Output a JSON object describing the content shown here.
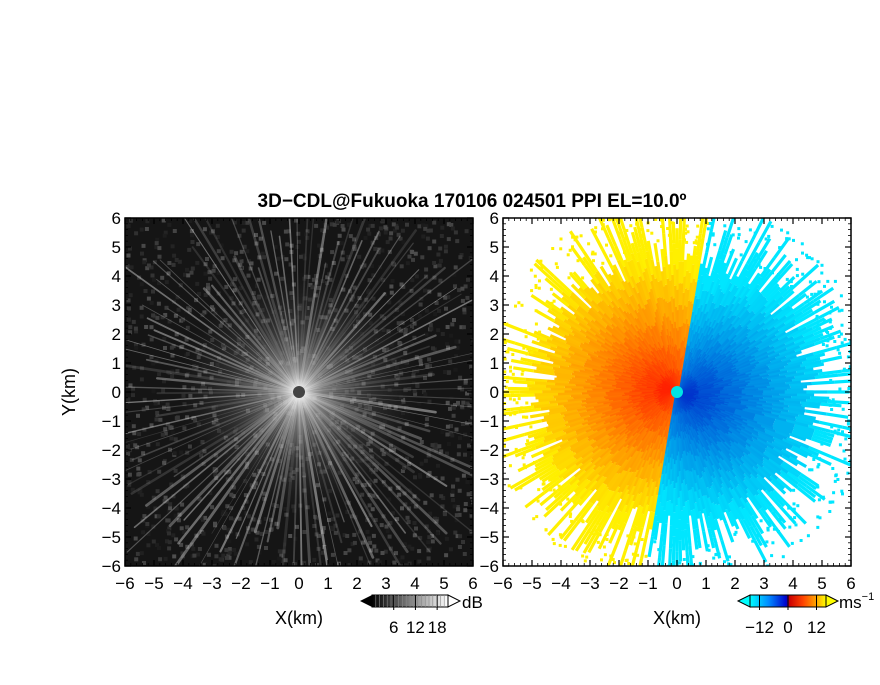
{
  "figure": {
    "title": "3D−CDL@Fukuoka 170106 024501 PPI EL=10.0º"
  },
  "chart_data": [
    {
      "type": "heatmap",
      "name": "reflectivity-ppi",
      "title": "",
      "xlabel": "X(km)",
      "ylabel": "Y(km)",
      "xlim": [
        -6,
        6
      ],
      "ylim": [
        -6,
        6
      ],
      "xticks": [
        -6,
        -5,
        -4,
        -3,
        -2,
        -1,
        0,
        1,
        2,
        3,
        4,
        5,
        6
      ],
      "yticks": [
        -6,
        -5,
        -4,
        -3,
        -2,
        -1,
        0,
        1,
        2,
        3,
        4,
        5,
        6
      ],
      "xtick_labels": [
        "−6",
        "−5",
        "−4",
        "−3",
        "−2",
        "−1",
        "0",
        "1",
        "2",
        "3",
        "4",
        "5",
        "6"
      ],
      "ytick_labels": [
        "−6",
        "−5",
        "−4",
        "−3",
        "−2",
        "−1",
        "0",
        "1",
        "2",
        "3",
        "4",
        "5",
        "6"
      ],
      "grid": false,
      "colorbar": {
        "unit": "dB",
        "tick_values": [
          6,
          12,
          18
        ],
        "tick_labels": [
          "6",
          "12",
          "18"
        ],
        "range": [
          0,
          21
        ],
        "colors": [
          "#000000",
          "#ffffff"
        ]
      }
    },
    {
      "type": "heatmap",
      "name": "radial-velocity-ppi",
      "title": "",
      "xlabel": "X(km)",
      "ylabel": "",
      "xlim": [
        -6,
        6
      ],
      "ylim": [
        -6,
        6
      ],
      "xticks": [
        -6,
        -5,
        -4,
        -3,
        -2,
        -1,
        0,
        1,
        2,
        3,
        4,
        5,
        6
      ],
      "xtick_labels": [
        "−6",
        "−5",
        "−4",
        "−3",
        "−2",
        "−1",
        "0",
        "1",
        "2",
        "3",
        "4",
        "5",
        "6"
      ],
      "ytick_labels": [
        "−6",
        "−5",
        "−4",
        "−3",
        "−2",
        "−1",
        "0",
        "1",
        "2",
        "3",
        "4",
        "5",
        "6"
      ],
      "grid": false,
      "colorbar": {
        "unit": "ms",
        "unit_superscript": "−1",
        "tick_values": [
          -12,
          0,
          12
        ],
        "tick_labels": [
          "−12",
          "0",
          "12"
        ],
        "range": [
          -16,
          16
        ],
        "colors": [
          "#00ffff",
          "#0066ff",
          "#0000cc",
          "#cc0000",
          "#ff3300",
          "#ffaa00",
          "#ffff00"
        ]
      }
    }
  ]
}
